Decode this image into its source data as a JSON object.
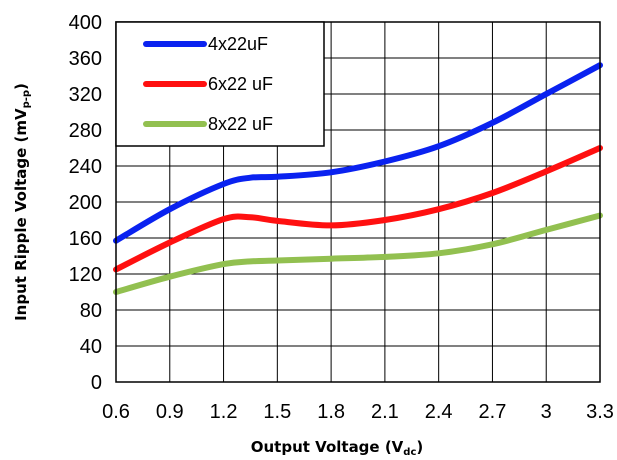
{
  "chart_data": {
    "type": "line",
    "xlabel": "Output Voltage (V",
    "xlabel_sub": "dc",
    "xlabel_end": ")",
    "ylabel": "Input Ripple Voltage (mV",
    "ylabel_sub": "p-p",
    "ylabel_end": ")",
    "xlim": [
      0.6,
      3.3
    ],
    "ylim": [
      0,
      400
    ],
    "x_ticks": [
      "0.6",
      "0.9",
      "1.2",
      "1.5",
      "1.8",
      "2.1",
      "2.4",
      "2.7",
      "3",
      "3.3"
    ],
    "y_ticks": [
      "0",
      "40",
      "80",
      "120",
      "160",
      "200",
      "240",
      "280",
      "320",
      "360",
      "400"
    ],
    "grid": true,
    "legend_position": "top-left",
    "series": [
      {
        "name": "4x22uF",
        "color": "#0a22f0",
        "x": [
          0.6,
          0.9,
          1.2,
          1.35,
          1.5,
          1.8,
          2.1,
          2.4,
          2.7,
          3.0,
          3.3
        ],
        "y": [
          157,
          192,
          220,
          227,
          228,
          233,
          245,
          262,
          288,
          320,
          352
        ]
      },
      {
        "name": "6x22 uF",
        "color": "#ff1010",
        "x": [
          0.6,
          0.9,
          1.2,
          1.35,
          1.5,
          1.8,
          2.1,
          2.4,
          2.7,
          3.0,
          3.3
        ],
        "y": [
          125,
          155,
          181,
          183,
          179,
          174,
          180,
          192,
          210,
          234,
          260
        ]
      },
      {
        "name": "8x22 uF",
        "color": "#92c050",
        "x": [
          0.6,
          0.9,
          1.2,
          1.35,
          1.5,
          1.8,
          2.1,
          2.4,
          2.7,
          3.0,
          3.3
        ],
        "y": [
          100,
          117,
          131,
          134,
          135,
          137,
          139,
          143,
          153,
          169,
          185
        ]
      }
    ]
  }
}
